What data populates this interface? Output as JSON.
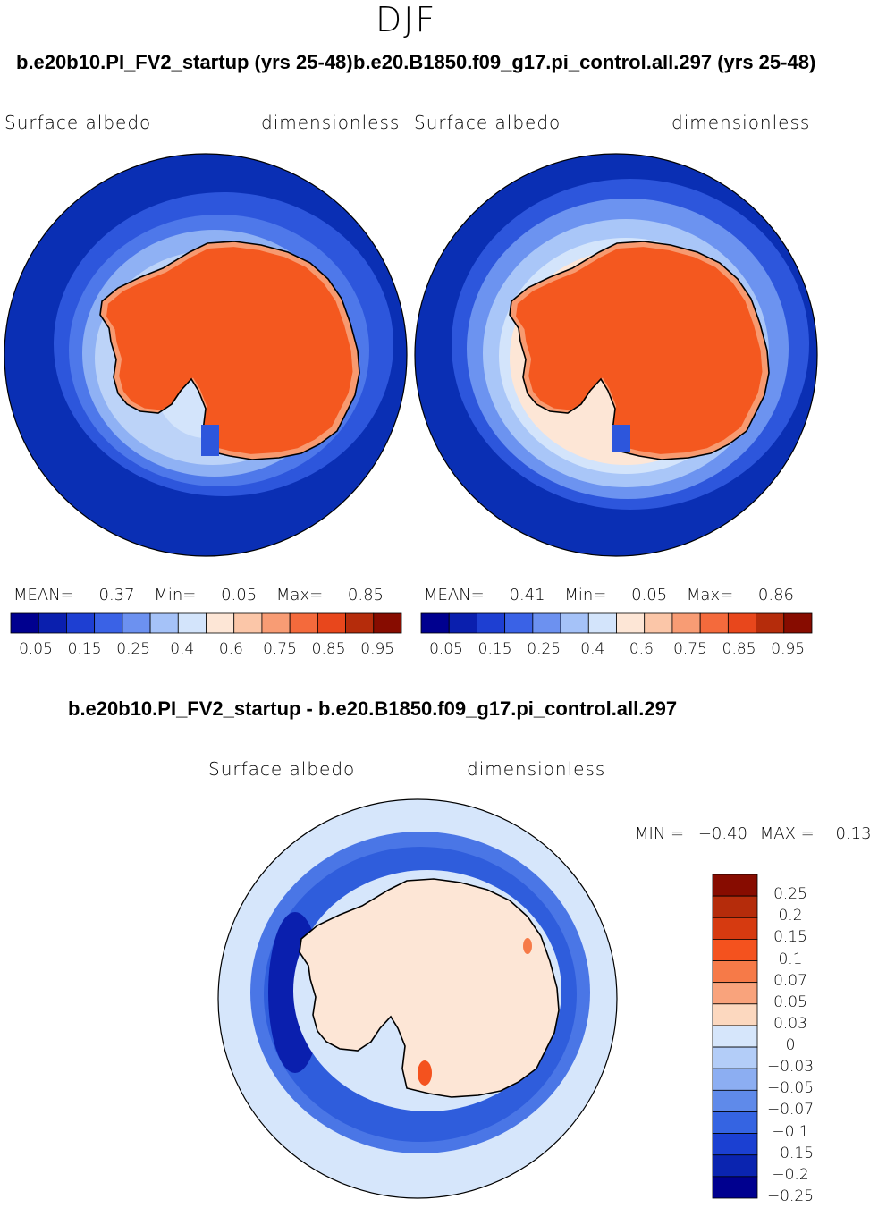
{
  "season": "DJF",
  "panels": [
    {
      "case": "b.e20b10.PI_FV2_startup (yrs 25-48)",
      "variable": "Surface albedo",
      "units": "dimensionless",
      "stats": {
        "mean_label": "MEAN=",
        "mean": "0.37",
        "min_label": "Min=",
        "min": "0.05",
        "max_label": "Max=",
        "max": "0.85"
      }
    },
    {
      "case": "b.e20.B1850.f09_g17.pi_control.all.297 (yrs 25-48)",
      "variable": "Surface albedo",
      "units": "dimensionless",
      "stats": {
        "mean_label": "MEAN=",
        "mean": "0.41",
        "min_label": "Min=",
        "min": "0.05",
        "max_label": "Max=",
        "max": "0.86"
      }
    }
  ],
  "abs_colorbar": {
    "colors": [
      "#00008f",
      "#0a1fae",
      "#1e3fd2",
      "#3a62e6",
      "#6c91f0",
      "#a5c2f8",
      "#d3e4fb",
      "#fde6d6",
      "#fbc6a8",
      "#f89c74",
      "#f46a3c",
      "#e8471c",
      "#b52c0b",
      "#870c00"
    ],
    "tick_labels": [
      "0.05",
      "0.15",
      "0.25",
      "0.4",
      "0.6",
      "0.75",
      "0.85",
      "0.95"
    ]
  },
  "diff_panel": {
    "title": "b.e20b10.PI_FV2_startup - b.e20.B1850.f09_g17.pi_control.all.297",
    "variable": "Surface albedo",
    "units": "dimensionless",
    "range": {
      "min_label": "MIN =",
      "min": "−0.40",
      "max_label": "MAX =",
      "max": "0.13"
    },
    "colorbar": {
      "colors_top_to_bottom": [
        "#870c00",
        "#b52c0b",
        "#d63a10",
        "#f4521e",
        "#f67a48",
        "#f9a37c",
        "#fcd8bf",
        "#d6e6fb",
        "#b3cdf8",
        "#8caef2",
        "#5f8aea",
        "#3564e2",
        "#1b40d2",
        "#0a24b0",
        "#00008f"
      ],
      "labels_top_to_bottom": [
        "0.25",
        "0.2",
        "0.15",
        "0.1",
        "0.07",
        "0.05",
        "0.03",
        "0",
        "−0.03",
        "−0.05",
        "−0.07",
        "−0.1",
        "−0.15",
        "−0.2",
        "−0.25"
      ]
    }
  },
  "map_colors": {
    "ocean_far": "#0a2fb4",
    "ocean_mid": "#2d56dc",
    "ocean_near": "#6c93f0",
    "ice_edge": "#a9c6f8",
    "ice_inner": "#d3e4fb",
    "land": "#f4581f",
    "land_edge": "#f79a70",
    "diff_bg": "#d6e6fb",
    "diff_neg": "#2f5ddc",
    "diff_strong_neg": "#0a1fae",
    "diff_land": "#fde6d6"
  }
}
